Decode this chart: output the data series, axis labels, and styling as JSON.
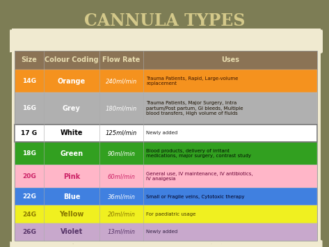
{
  "title": "CANNULA TYPES",
  "title_color": "#d4c98a",
  "bg_color": "#7d7d55",
  "paper_bg": "#f0ead0",
  "header_bg": "#8B7355",
  "header_text_color": "#e8ddb0",
  "headers": [
    "Size",
    "Colour Coding",
    "Flow Rate",
    "Uses"
  ],
  "rows": [
    {
      "size": "14G",
      "colour": "Orange",
      "flow": "240ml/min",
      "uses": "Trauma Patients, Rapid, Large-volume\nreplacement",
      "bg": "#F5921E",
      "text_color": "#ffffff",
      "uses_text_color": "#3a1500"
    },
    {
      "size": "16G",
      "colour": "Grey",
      "flow": "180ml/min",
      "uses": "Trauma Patients, Major Surgery, Intra\npartum/Post partum, GI bleeds, Multiple\nblood transfers, High volume of fluids",
      "bg": "#B0B0B0",
      "text_color": "#ffffff",
      "uses_text_color": "#1a1000"
    },
    {
      "size": "17 G",
      "colour": "White",
      "flow": "125ml/min",
      "uses": "Newly added",
      "bg": "#ffffff",
      "text_color": "#000000",
      "uses_text_color": "#222222"
    },
    {
      "size": "18G",
      "colour": "Green",
      "flow": "90ml/min",
      "uses": "Blood products, delivery of irritant\nmedications, major surgery, contrast study",
      "bg": "#32a020",
      "text_color": "#ffffff",
      "uses_text_color": "#001000"
    },
    {
      "size": "20G",
      "colour": "Pink",
      "flow": "60ml/min",
      "uses": "General use, IV maintenance, IV antibiotics,\nIV analgesia",
      "bg": "#ffb6c8",
      "text_color": "#cc2266",
      "uses_text_color": "#660033"
    },
    {
      "size": "22G",
      "colour": "Blue",
      "flow": "36ml/min",
      "uses": "Small or Fragile veins, Cytotoxic therapy",
      "bg": "#4080e0",
      "text_color": "#ffffff",
      "uses_text_color": "#000020"
    },
    {
      "size": "24G",
      "colour": "Yellow",
      "flow": "20ml/min",
      "uses": "For paediatric usage",
      "bg": "#f0f020",
      "text_color": "#887700",
      "uses_text_color": "#443800"
    },
    {
      "size": "26G",
      "colour": "Violet",
      "flow": "13ml/min",
      "uses": "Newly added",
      "bg": "#c8a8cc",
      "text_color": "#553366",
      "uses_text_color": "#332244"
    }
  ],
  "col_props": [
    0.095,
    0.185,
    0.145,
    0.575
  ],
  "figsize": [
    4.73,
    3.55
  ],
  "dpi": 100
}
